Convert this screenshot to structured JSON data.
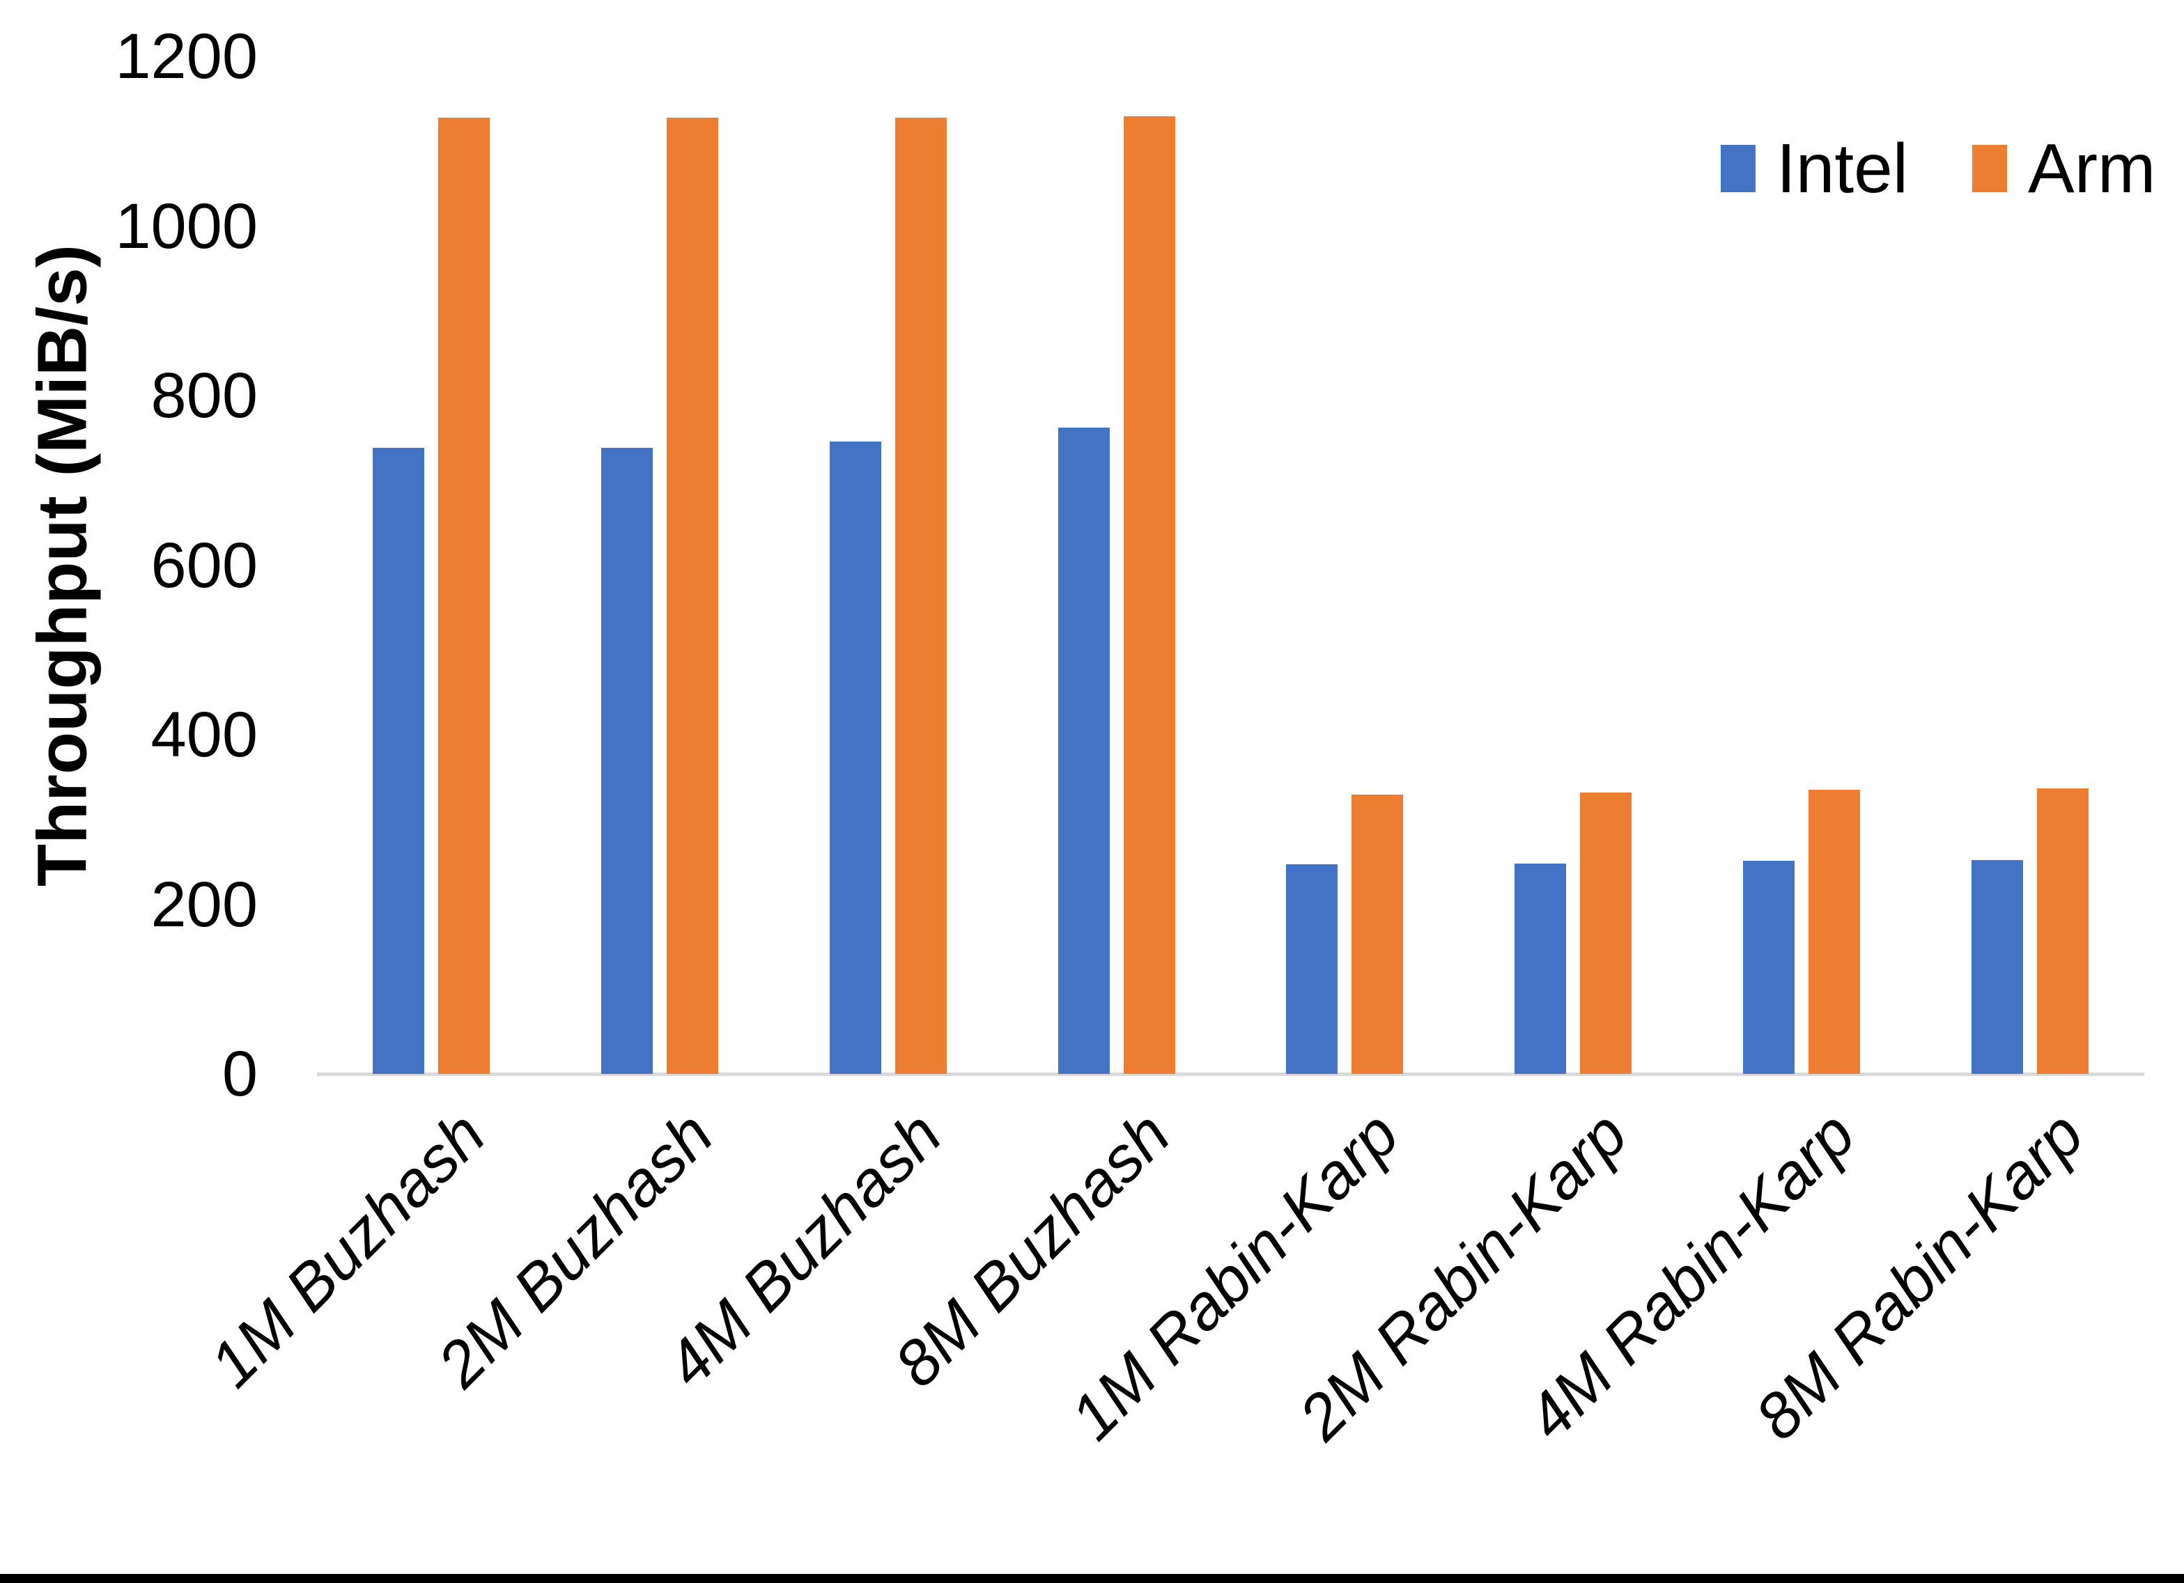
{
  "chart_data": {
    "type": "bar",
    "title": "",
    "xlabel": "",
    "ylabel": "Throughput (MiB/s)",
    "ylim": [
      0,
      1200
    ],
    "yticks": [
      0,
      200,
      400,
      600,
      800,
      1000,
      1200
    ],
    "grid": false,
    "legend_position": "top-right",
    "categories": [
      "1M Buzhash",
      "2M Buzhash",
      "4M Buzhash",
      "8M Buzhash",
      "1M Rabin-Karp",
      "2M Rabin-Karp",
      "4M Rabin-Karp",
      "8M Rabin-Karp"
    ],
    "series": [
      {
        "name": "Intel",
        "color": "#4472c4",
        "values": [
          738,
          738,
          746,
          762,
          247,
          248,
          251,
          252
        ]
      },
      {
        "name": "Arm",
        "color": "#ed7d31",
        "values": [
          1128,
          1128,
          1128,
          1129,
          329,
          332,
          335,
          337
        ]
      }
    ]
  },
  "colors": {
    "axis_line": "#d9d9d9",
    "text": "#000000",
    "bottom_border": "#000000"
  }
}
